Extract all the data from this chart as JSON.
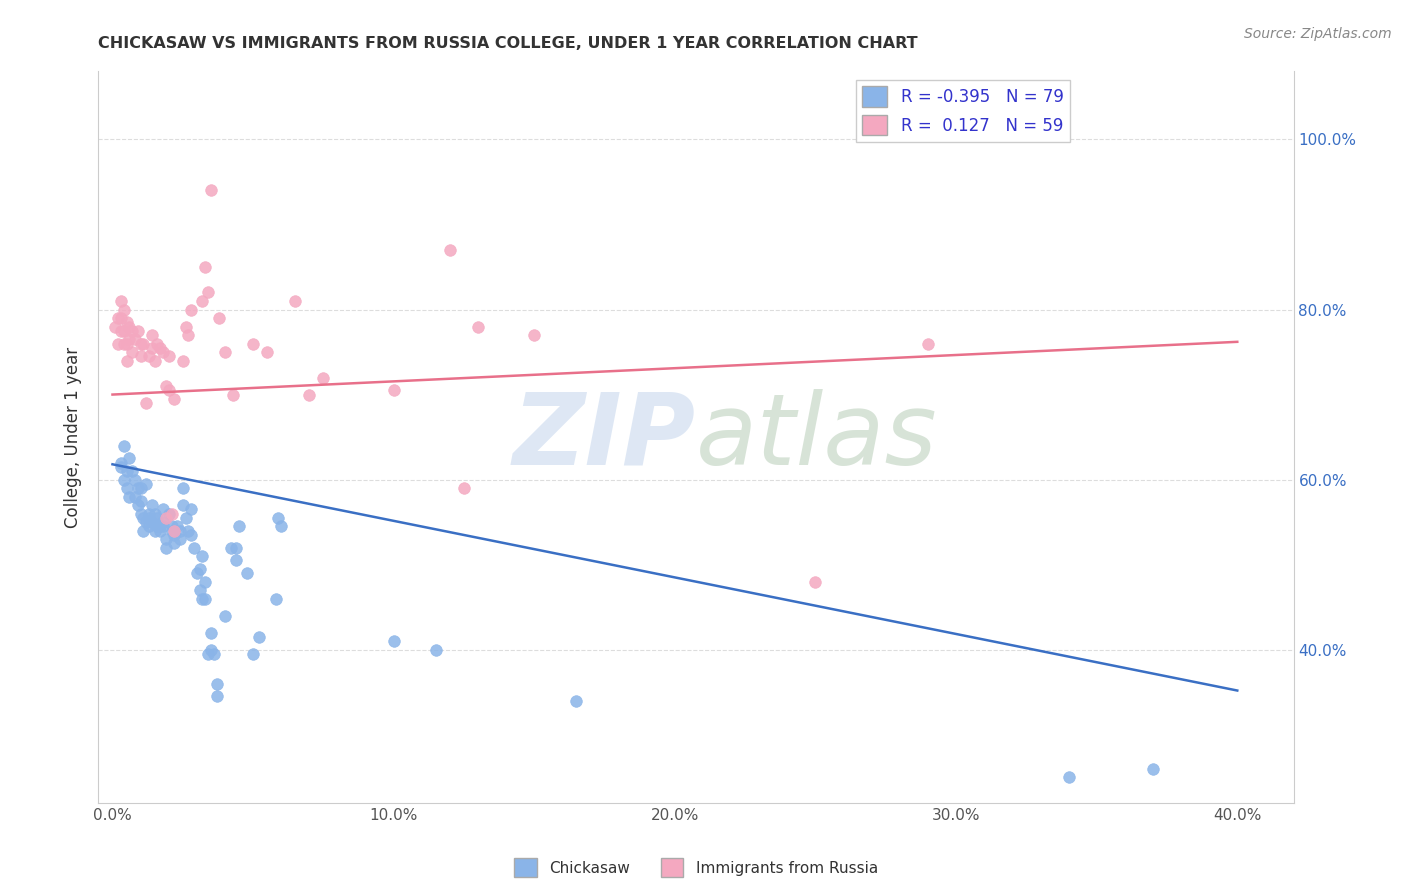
{
  "title": "CHICKASAW VS IMMIGRANTS FROM RUSSIA COLLEGE, UNDER 1 YEAR CORRELATION CHART",
  "source": "Source: ZipAtlas.com",
  "xlabel_ticks": [
    "0.0%",
    "10.0%",
    "20.0%",
    "30.0%",
    "40.0%"
  ],
  "xlabel_tick_vals": [
    0.0,
    0.1,
    0.2,
    0.3,
    0.4
  ],
  "ylabel": "College, Under 1 year",
  "ylabel_ticks": [
    "40.0%",
    "60.0%",
    "80.0%",
    "100.0%"
  ],
  "ylabel_tick_vals": [
    0.4,
    0.6,
    0.8,
    1.0
  ],
  "xlim": [
    -0.005,
    0.42
  ],
  "ylim": [
    0.22,
    1.08
  ],
  "legend_r_blue": "-0.395",
  "legend_n_blue": "79",
  "legend_r_pink": " 0.127",
  "legend_n_pink": "59",
  "blue_color": "#8ab4e8",
  "pink_color": "#f4a8c0",
  "trendline_blue_color": "#3a6fc4",
  "trendline_pink_color": "#e8708a",
  "watermark_zip": "ZIP",
  "watermark_atlas": "atlas",
  "blue_scatter": [
    [
      0.003,
      0.62
    ],
    [
      0.003,
      0.615
    ],
    [
      0.004,
      0.64
    ],
    [
      0.004,
      0.6
    ],
    [
      0.005,
      0.59
    ],
    [
      0.005,
      0.61
    ],
    [
      0.006,
      0.625
    ],
    [
      0.006,
      0.58
    ],
    [
      0.007,
      0.61
    ],
    [
      0.008,
      0.58
    ],
    [
      0.008,
      0.6
    ],
    [
      0.009,
      0.59
    ],
    [
      0.009,
      0.57
    ],
    [
      0.01,
      0.575
    ],
    [
      0.01,
      0.56
    ],
    [
      0.01,
      0.59
    ],
    [
      0.011,
      0.54
    ],
    [
      0.011,
      0.555
    ],
    [
      0.012,
      0.55
    ],
    [
      0.012,
      0.595
    ],
    [
      0.013,
      0.555
    ],
    [
      0.013,
      0.56
    ],
    [
      0.013,
      0.545
    ],
    [
      0.014,
      0.57
    ],
    [
      0.014,
      0.55
    ],
    [
      0.015,
      0.56
    ],
    [
      0.015,
      0.54
    ],
    [
      0.016,
      0.555
    ],
    [
      0.016,
      0.545
    ],
    [
      0.017,
      0.545
    ],
    [
      0.017,
      0.54
    ],
    [
      0.018,
      0.565
    ],
    [
      0.018,
      0.55
    ],
    [
      0.018,
      0.545
    ],
    [
      0.019,
      0.53
    ],
    [
      0.019,
      0.52
    ],
    [
      0.02,
      0.56
    ],
    [
      0.021,
      0.545
    ],
    [
      0.021,
      0.54
    ],
    [
      0.022,
      0.535
    ],
    [
      0.022,
      0.525
    ],
    [
      0.023,
      0.545
    ],
    [
      0.024,
      0.54
    ],
    [
      0.024,
      0.53
    ],
    [
      0.025,
      0.59
    ],
    [
      0.025,
      0.57
    ],
    [
      0.026,
      0.555
    ],
    [
      0.027,
      0.54
    ],
    [
      0.028,
      0.565
    ],
    [
      0.028,
      0.535
    ],
    [
      0.029,
      0.52
    ],
    [
      0.03,
      0.49
    ],
    [
      0.031,
      0.495
    ],
    [
      0.031,
      0.47
    ],
    [
      0.032,
      0.51
    ],
    [
      0.032,
      0.46
    ],
    [
      0.033,
      0.48
    ],
    [
      0.033,
      0.46
    ],
    [
      0.034,
      0.395
    ],
    [
      0.035,
      0.42
    ],
    [
      0.035,
      0.4
    ],
    [
      0.036,
      0.395
    ],
    [
      0.037,
      0.36
    ],
    [
      0.037,
      0.345
    ],
    [
      0.04,
      0.44
    ],
    [
      0.042,
      0.52
    ],
    [
      0.044,
      0.52
    ],
    [
      0.044,
      0.505
    ],
    [
      0.045,
      0.545
    ],
    [
      0.048,
      0.49
    ],
    [
      0.05,
      0.395
    ],
    [
      0.052,
      0.415
    ],
    [
      0.058,
      0.46
    ],
    [
      0.059,
      0.555
    ],
    [
      0.06,
      0.545
    ],
    [
      0.1,
      0.41
    ],
    [
      0.115,
      0.4
    ],
    [
      0.165,
      0.34
    ],
    [
      0.34,
      0.25
    ],
    [
      0.37,
      0.26
    ]
  ],
  "pink_scatter": [
    [
      0.001,
      0.78
    ],
    [
      0.002,
      0.79
    ],
    [
      0.002,
      0.76
    ],
    [
      0.003,
      0.81
    ],
    [
      0.003,
      0.79
    ],
    [
      0.003,
      0.775
    ],
    [
      0.004,
      0.8
    ],
    [
      0.004,
      0.775
    ],
    [
      0.004,
      0.76
    ],
    [
      0.005,
      0.785
    ],
    [
      0.005,
      0.76
    ],
    [
      0.005,
      0.74
    ],
    [
      0.006,
      0.78
    ],
    [
      0.006,
      0.765
    ],
    [
      0.007,
      0.75
    ],
    [
      0.007,
      0.775
    ],
    [
      0.008,
      0.765
    ],
    [
      0.009,
      0.775
    ],
    [
      0.01,
      0.745
    ],
    [
      0.01,
      0.76
    ],
    [
      0.011,
      0.76
    ],
    [
      0.012,
      0.69
    ],
    [
      0.013,
      0.745
    ],
    [
      0.014,
      0.77
    ],
    [
      0.014,
      0.755
    ],
    [
      0.015,
      0.74
    ],
    [
      0.016,
      0.76
    ],
    [
      0.017,
      0.755
    ],
    [
      0.018,
      0.75
    ],
    [
      0.019,
      0.71
    ],
    [
      0.019,
      0.555
    ],
    [
      0.02,
      0.705
    ],
    [
      0.02,
      0.745
    ],
    [
      0.021,
      0.56
    ],
    [
      0.022,
      0.695
    ],
    [
      0.022,
      0.54
    ],
    [
      0.025,
      0.74
    ],
    [
      0.026,
      0.78
    ],
    [
      0.027,
      0.77
    ],
    [
      0.028,
      0.8
    ],
    [
      0.032,
      0.81
    ],
    [
      0.033,
      0.85
    ],
    [
      0.034,
      0.82
    ],
    [
      0.035,
      0.94
    ],
    [
      0.038,
      0.79
    ],
    [
      0.04,
      0.75
    ],
    [
      0.043,
      0.7
    ],
    [
      0.05,
      0.76
    ],
    [
      0.055,
      0.75
    ],
    [
      0.065,
      0.81
    ],
    [
      0.07,
      0.7
    ],
    [
      0.075,
      0.72
    ],
    [
      0.1,
      0.705
    ],
    [
      0.12,
      0.87
    ],
    [
      0.125,
      0.59
    ],
    [
      0.13,
      0.78
    ],
    [
      0.15,
      0.77
    ],
    [
      0.25,
      0.48
    ],
    [
      0.29,
      0.76
    ]
  ],
  "blue_trend_x": [
    0.0,
    0.4
  ],
  "blue_trend_y": [
    0.618,
    0.352
  ],
  "pink_trend_x": [
    0.0,
    0.4
  ],
  "pink_trend_y": [
    0.7,
    0.762
  ]
}
